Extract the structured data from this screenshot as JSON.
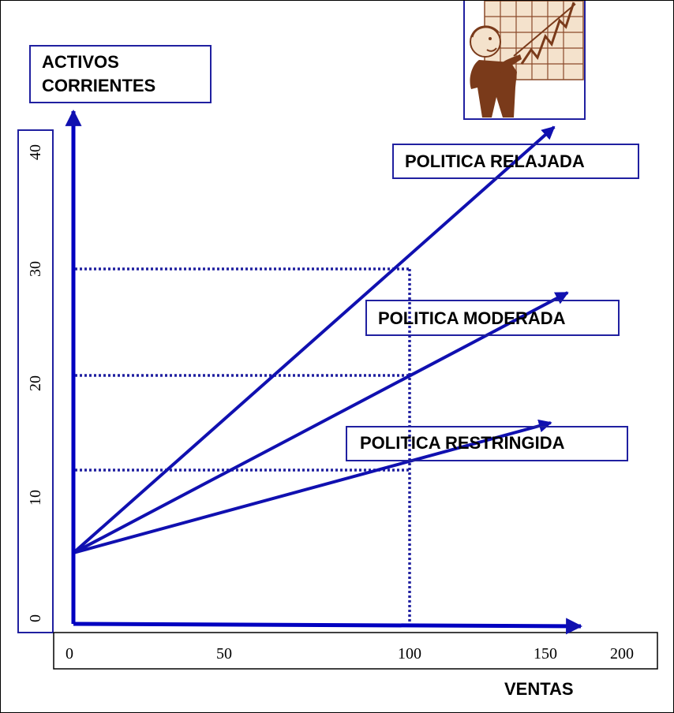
{
  "chart_data": {
    "type": "line",
    "ylabel_lines": [
      "ACTIVOS",
      "CORRIENTES"
    ],
    "xlabel": "VENTAS",
    "x_ticks": [
      "0",
      "50",
      "100",
      "150",
      "200"
    ],
    "y_ticks": [
      "0",
      "10",
      "20",
      "30",
      "40"
    ],
    "xlim": [
      0,
      200
    ],
    "ylim": [
      0,
      40
    ],
    "series": [
      {
        "name": "POLITICA RELAJADA",
        "points": [
          [
            0,
            6
          ],
          [
            143,
            42
          ]
        ]
      },
      {
        "name": "POLITICA MODERADA",
        "points": [
          [
            0,
            6
          ],
          [
            147,
            28
          ]
        ]
      },
      {
        "name": "POLITICA RESTRINGIDA",
        "points": [
          [
            0,
            6
          ],
          [
            142,
            17
          ]
        ]
      }
    ],
    "reference_lines": {
      "x": 100,
      "y": [
        30,
        21,
        13
      ]
    },
    "colors": {
      "axis": "#0000C0",
      "series": "#1010B0",
      "box_border": "#2020A0",
      "illustration_frame": "#2020A0"
    },
    "illustration": "businessman-pointing-at-rising-chart-icon"
  }
}
